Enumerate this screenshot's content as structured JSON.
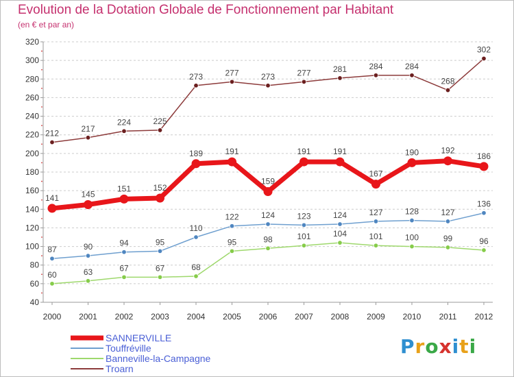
{
  "title": "Evolution de la Dotation Globale de Fonctionnement par Habitant",
  "subtitle": "(en € et par an)",
  "logo_text": "Proxiti",
  "colors": {
    "title": "#c5306e",
    "legend_text": "#4a5fd6",
    "grid": "#cccccc"
  },
  "chart_data": {
    "type": "line",
    "title": "Evolution de la Dotation Globale de Fonctionnement par Habitant",
    "subtitle": "(en € et par an)",
    "x": [
      "2000",
      "2001",
      "2002",
      "2003",
      "2004",
      "2005",
      "2006",
      "2007",
      "2008",
      "2009",
      "2010",
      "2011",
      "2012"
    ],
    "ylim": [
      40,
      320
    ],
    "yticks": [
      40,
      60,
      80,
      100,
      120,
      140,
      160,
      180,
      200,
      220,
      240,
      260,
      280,
      300,
      320
    ],
    "grid": "horizontal dashed",
    "legend_position": "bottom-left",
    "series": [
      {
        "name": "SANNERVILLE",
        "color": "#e8161a",
        "marker_color": "#e8161a",
        "emphasis": true,
        "values": [
          141,
          145,
          151,
          152,
          189,
          191,
          159,
          191,
          191,
          167,
          190,
          192,
          186
        ]
      },
      {
        "name": "Touffréville",
        "color": "#6e9fcf",
        "marker_color": "#4f86c0",
        "emphasis": false,
        "values": [
          87,
          90,
          94,
          95,
          110,
          122,
          124,
          123,
          124,
          127,
          128,
          127,
          136
        ]
      },
      {
        "name": "Banneville-la-Campagne",
        "color": "#9ed86c",
        "marker_color": "#86cc4a",
        "emphasis": false,
        "values": [
          60,
          63,
          67,
          67,
          68,
          95,
          98,
          101,
          104,
          101,
          100,
          99,
          96
        ]
      },
      {
        "name": "Troarn",
        "color": "#8c3a3a",
        "marker_color": "#6b1f1f",
        "emphasis": false,
        "values": [
          212,
          217,
          224,
          225,
          273,
          277,
          273,
          277,
          281,
          284,
          284,
          268,
          302
        ]
      }
    ]
  }
}
